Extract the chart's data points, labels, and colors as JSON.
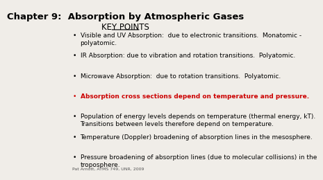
{
  "title": "Chapter 9:  Absorption by Atmospheric Gases",
  "subtitle": "KEY POINTS",
  "background_color": "#f0ede8",
  "title_color": "#000000",
  "title_fontsize": 9.5,
  "subtitle_fontsize": 8.5,
  "bullet_fontsize": 6.5,
  "footer_fontsize": 4.5,
  "footer": "Pat Arnott, ATMS 749, UNR, 2009",
  "bullets": [
    {
      "text": "Visible and UV Absorption:  due to electronic transitions.  Monatomic -\npolyatomic.",
      "color": "#000000",
      "bold": false
    },
    {
      "text": "IR Absorption: due to vibration and rotation transitions.  Polyatomic.",
      "color": "#000000",
      "bold": false
    },
    {
      "text": "Microwave Absorption:  due to rotation transitions.  Polyatomic.",
      "color": "#000000",
      "bold": false
    },
    {
      "text": "Absorption cross sections depend on temperature and pressure.",
      "color": "#cc0000",
      "bold": true
    },
    {
      "text": "Population of energy levels depends on temperature (thermal energy, kT).\nTransitions between levels therefore depend on temperature.",
      "color": "#000000",
      "bold": false
    },
    {
      "text": "Temperature (Doppler) broadening of absorption lines in the mesosphere.",
      "color": "#000000",
      "bold": false
    },
    {
      "text": "Pressure broadening of absorption lines (due to molecular collisions) in the\ntroposphere.",
      "color": "#000000",
      "bold": false
    }
  ]
}
